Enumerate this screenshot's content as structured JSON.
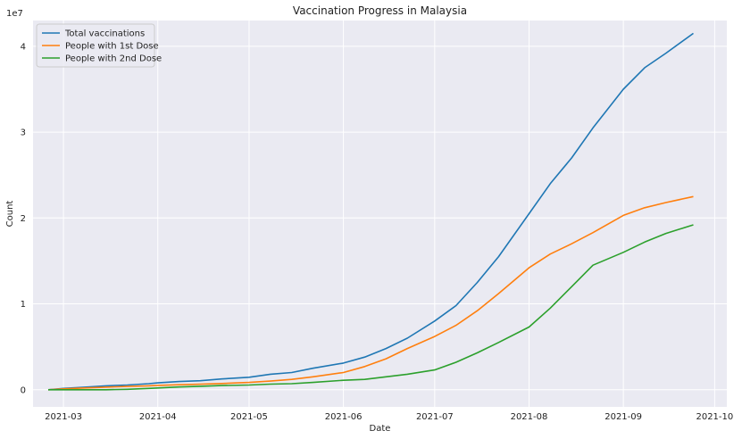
{
  "chart_data": {
    "type": "line",
    "title": "Vaccination Progress in Malaysia",
    "xlabel": "Date",
    "ylabel": "Count",
    "y_multiplier_label": "1e7",
    "xlim": [
      "2021-02-19",
      "2021-10-05"
    ],
    "ylim": [
      -2000000,
      43000000
    ],
    "grid": true,
    "legend_position": "top-left",
    "x_ticks": [
      "2021-03-01",
      "2021-04-01",
      "2021-05-01",
      "2021-06-01",
      "2021-07-01",
      "2021-08-01",
      "2021-09-01",
      "2021-10-01"
    ],
    "x_tick_labels": [
      "2021-03",
      "2021-04",
      "2021-05",
      "2021-06",
      "2021-07",
      "2021-08",
      "2021-09",
      "2021-10"
    ],
    "y_ticks": [
      0,
      10000000,
      20000000,
      30000000,
      40000000
    ],
    "y_tick_labels": [
      "0",
      "1",
      "2",
      "3",
      "4"
    ],
    "series": [
      {
        "name": "Total vaccinations",
        "color": "#1f77b4",
        "x": [
          "2021-02-24",
          "2021-03-01",
          "2021-03-08",
          "2021-03-15",
          "2021-03-22",
          "2021-03-29",
          "2021-04-01",
          "2021-04-08",
          "2021-04-15",
          "2021-04-22",
          "2021-05-01",
          "2021-05-08",
          "2021-05-15",
          "2021-05-22",
          "2021-06-01",
          "2021-06-08",
          "2021-06-15",
          "2021-06-22",
          "2021-07-01",
          "2021-07-08",
          "2021-07-15",
          "2021-07-22",
          "2021-08-01",
          "2021-08-08",
          "2021-08-15",
          "2021-08-22",
          "2021-09-01",
          "2021-09-08",
          "2021-09-15",
          "2021-09-24"
        ],
        "y": [
          0,
          150000,
          300000,
          450000,
          550000,
          700000,
          800000,
          950000,
          1050000,
          1250000,
          1450000,
          1800000,
          2000000,
          2500000,
          3100000,
          3800000,
          4800000,
          6000000,
          8000000,
          9800000,
          12500000,
          15500000,
          20500000,
          24000000,
          27000000,
          30500000,
          35000000,
          37500000,
          39200000,
          41500000
        ]
      },
      {
        "name": "People with 1st Dose",
        "color": "#ff7f0e",
        "x": [
          "2021-02-24",
          "2021-03-01",
          "2021-03-08",
          "2021-03-15",
          "2021-03-22",
          "2021-03-29",
          "2021-04-01",
          "2021-04-08",
          "2021-04-15",
          "2021-04-22",
          "2021-05-01",
          "2021-05-08",
          "2021-05-15",
          "2021-05-22",
          "2021-06-01",
          "2021-06-08",
          "2021-06-15",
          "2021-06-22",
          "2021-07-01",
          "2021-07-08",
          "2021-07-15",
          "2021-07-22",
          "2021-08-01",
          "2021-08-08",
          "2021-08-15",
          "2021-08-22",
          "2021-09-01",
          "2021-09-08",
          "2021-09-15",
          "2021-09-24"
        ],
        "y": [
          0,
          100000,
          200000,
          300000,
          380000,
          450000,
          500000,
          580000,
          640000,
          720000,
          850000,
          1000000,
          1200000,
          1500000,
          2000000,
          2700000,
          3600000,
          4800000,
          6200000,
          7500000,
          9200000,
          11200000,
          14200000,
          15800000,
          17000000,
          18300000,
          20300000,
          21200000,
          21800000,
          22500000
        ]
      },
      {
        "name": "People with 2nd Dose",
        "color": "#2ca02c",
        "x": [
          "2021-02-24",
          "2021-03-01",
          "2021-03-08",
          "2021-03-15",
          "2021-03-22",
          "2021-03-29",
          "2021-04-01",
          "2021-04-08",
          "2021-04-15",
          "2021-04-22",
          "2021-05-01",
          "2021-05-08",
          "2021-05-15",
          "2021-05-22",
          "2021-06-01",
          "2021-06-08",
          "2021-06-15",
          "2021-06-22",
          "2021-07-01",
          "2021-07-08",
          "2021-07-15",
          "2021-07-22",
          "2021-08-01",
          "2021-08-08",
          "2021-08-15",
          "2021-08-22",
          "2021-09-01",
          "2021-09-08",
          "2021-09-15",
          "2021-09-24"
        ],
        "y": [
          0,
          0,
          0,
          0,
          50000,
          150000,
          200000,
          320000,
          400000,
          480000,
          550000,
          650000,
          700000,
          850000,
          1100000,
          1200000,
          1500000,
          1800000,
          2300000,
          3200000,
          4300000,
          5500000,
          7300000,
          9500000,
          12000000,
          14500000,
          16000000,
          17200000,
          18200000,
          19200000
        ]
      }
    ]
  }
}
